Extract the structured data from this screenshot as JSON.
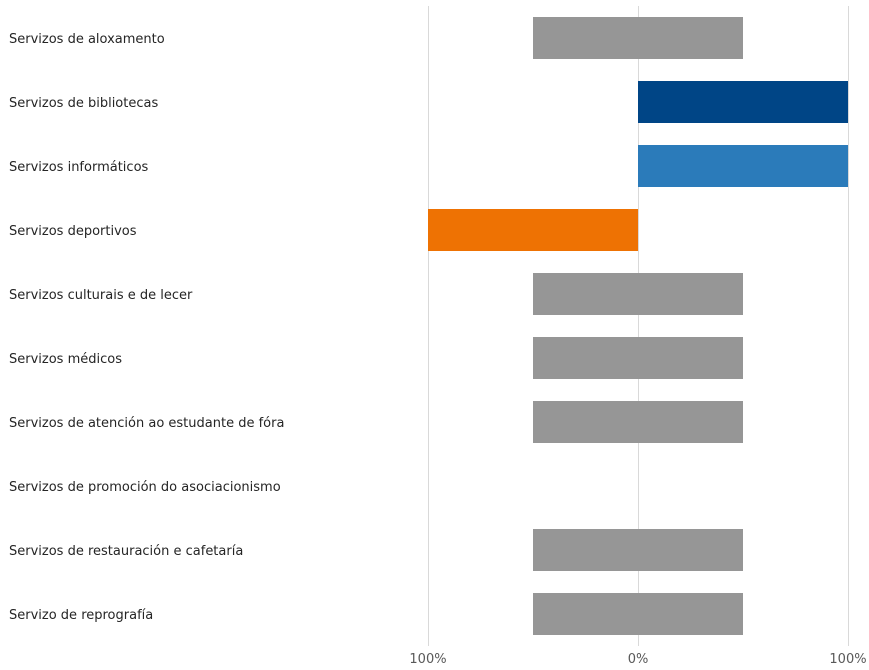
{
  "chart_data": {
    "type": "bar",
    "orientation": "horizontal",
    "diverging": true,
    "categories": [
      "Servizos de aloxamento",
      "Servizos de bibliotecas",
      "Servizos informáticos",
      "Servizos deportivos",
      "Servizos culturais e de lecer",
      "Servizos médicos",
      "Servizos de atención ao estudante de fóra",
      "Servizos de promoción do asociacionismo",
      "Servizos de restauración e cafetaría",
      "Servizo de reprografía"
    ],
    "series": [
      {
        "values": [
          {
            "start": -50,
            "end": 50
          },
          {
            "start": 0,
            "end": 100
          },
          {
            "start": 0,
            "end": 100
          },
          {
            "start": -100,
            "end": 0
          },
          {
            "start": -50,
            "end": 50
          },
          {
            "start": -50,
            "end": 50
          },
          {
            "start": -50,
            "end": 50
          },
          null,
          {
            "start": -50,
            "end": 50
          },
          {
            "start": -50,
            "end": 50
          }
        ],
        "colors": [
          "#969696",
          "#004586",
          "#2b7bba",
          "#ee7203",
          "#969696",
          "#969696",
          "#969696",
          "#969696",
          "#969696",
          "#969696"
        ]
      }
    ],
    "xlim": [
      -100,
      100
    ],
    "xticks": [
      {
        "value": -100,
        "label": "100%"
      },
      {
        "value": 0,
        "label": "0%"
      },
      {
        "value": 100,
        "label": "100%"
      }
    ],
    "grid": true,
    "title": "",
    "xlabel": "",
    "ylabel": ""
  }
}
